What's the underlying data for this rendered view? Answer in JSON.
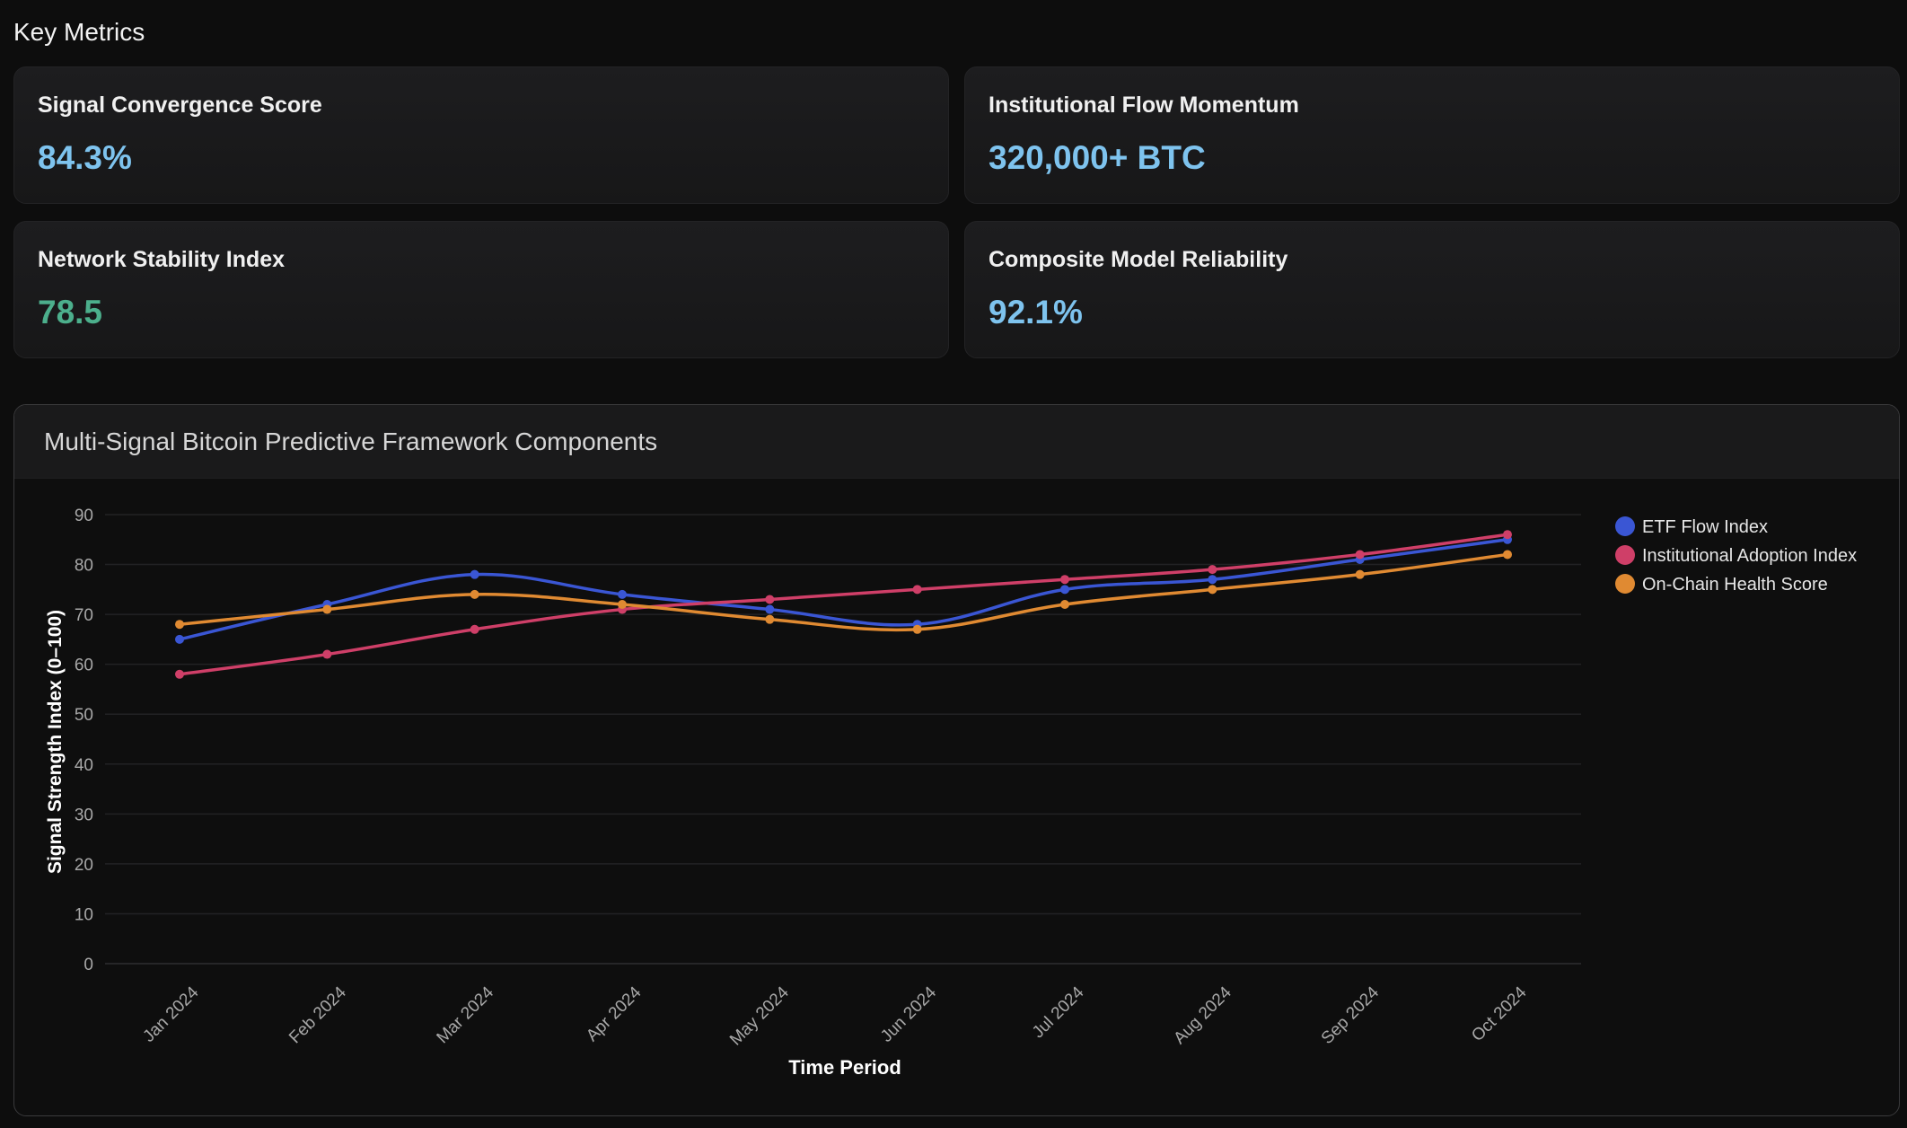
{
  "section_title": "Key Metrics",
  "metrics": [
    {
      "label": "Signal Convergence Score",
      "value": "84.3%",
      "color": "#7ec3ee"
    },
    {
      "label": "Institutional Flow Momentum",
      "value": "320,000+ BTC",
      "color": "#7ec3ee"
    },
    {
      "label": "Network Stability Index",
      "value": "78.5",
      "color": "#4caf8c"
    },
    {
      "label": "Composite Model Reliability",
      "value": "92.1%",
      "color": "#7ec3ee"
    }
  ],
  "chart_data": {
    "type": "line",
    "title": "Multi-Signal Bitcoin Predictive Framework Components",
    "xlabel": "Time Period",
    "ylabel": "Signal Strength Index (0–100)",
    "categories": [
      "Jan 2024",
      "Feb 2024",
      "Mar 2024",
      "Apr 2024",
      "May 2024",
      "Jun 2024",
      "Jul 2024",
      "Aug 2024",
      "Sep 2024",
      "Oct 2024"
    ],
    "ylim": [
      0,
      90
    ],
    "yticks": [
      0,
      10,
      20,
      30,
      40,
      50,
      60,
      70,
      80,
      90
    ],
    "grid": true,
    "legend_position": "right",
    "series": [
      {
        "name": "ETF Flow Index",
        "color": "#3a56d4",
        "values": [
          65,
          72,
          78,
          74,
          71,
          68,
          75,
          77,
          81,
          85
        ]
      },
      {
        "name": "Institutional Adoption Index",
        "color": "#cf3f68",
        "values": [
          58,
          62,
          67,
          71,
          73,
          75,
          77,
          79,
          82,
          86
        ]
      },
      {
        "name": "On-Chain Health Score",
        "color": "#e08a32",
        "values": [
          68,
          71,
          74,
          72,
          69,
          67,
          72,
          75,
          78,
          82
        ]
      }
    ]
  }
}
